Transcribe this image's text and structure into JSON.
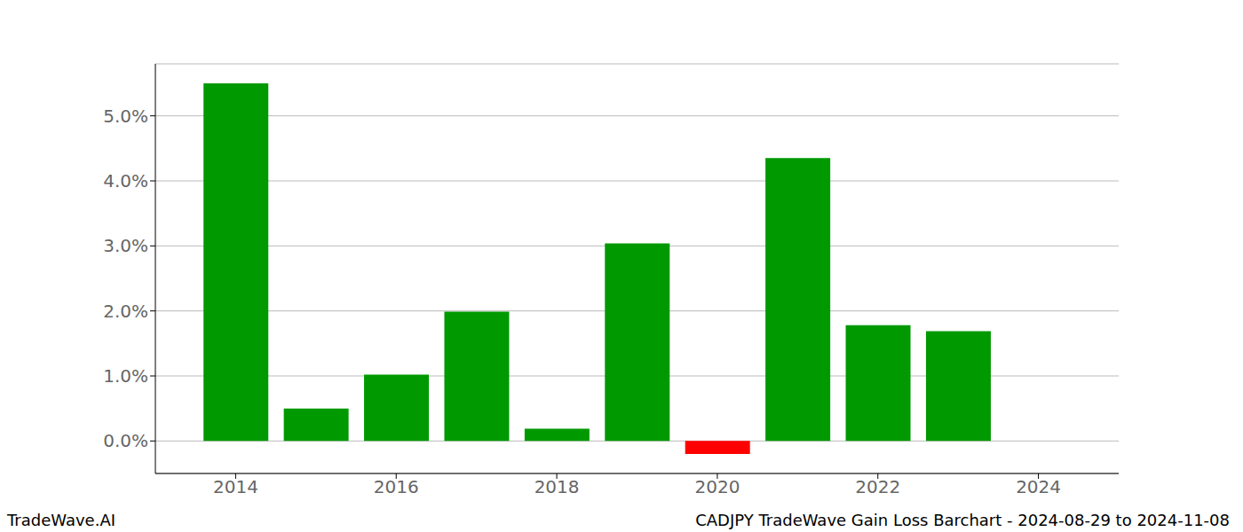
{
  "chart_data": {
    "type": "bar",
    "title": "CADJPY TradeWave Gain Loss Barchart - 2024-08-29 to 2024-11-08",
    "annotations": [
      "TradeWave.AI"
    ],
    "x": [
      2014,
      2015,
      2016,
      2017,
      2018,
      2019,
      2020,
      2021,
      2022,
      2023
    ],
    "values": [
      5.5,
      0.5,
      1.02,
      1.99,
      0.19,
      3.04,
      -0.2,
      4.35,
      1.78,
      1.69
    ],
    "colors": [
      "#009900",
      "#009900",
      "#009900",
      "#009900",
      "#009900",
      "#009900",
      "#ff0000",
      "#009900",
      "#009900",
      "#009900"
    ],
    "xlim": [
      2013,
      2025
    ],
    "xticks": [
      2014,
      2016,
      2018,
      2020,
      2022,
      2024
    ],
    "ylim": [
      -0.5,
      5.8
    ],
    "yticks": [
      {
        "value": 0,
        "label": "0.0%"
      },
      {
        "value": 1,
        "label": "1.0%"
      },
      {
        "value": 2,
        "label": "2.0%"
      },
      {
        "value": 3,
        "label": "3.0%"
      },
      {
        "value": 4,
        "label": "4.0%"
      },
      {
        "value": 5,
        "label": "5.0%"
      }
    ],
    "grid": true
  }
}
